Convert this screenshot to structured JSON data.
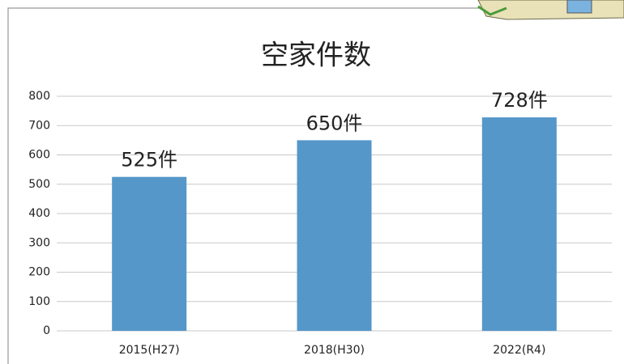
{
  "chart_data": {
    "type": "bar",
    "title": "空家件数",
    "categories": [
      "2015(H27)",
      "2018(H30)",
      "2022(R4)"
    ],
    "values": [
      525,
      650,
      728
    ],
    "value_labels": [
      "525件",
      "650件",
      "728件"
    ],
    "color": "#5597c9",
    "ylim": [
      0,
      800
    ],
    "yticks": [
      0,
      100,
      200,
      300,
      400,
      500,
      600,
      700,
      800
    ],
    "grid": true
  }
}
